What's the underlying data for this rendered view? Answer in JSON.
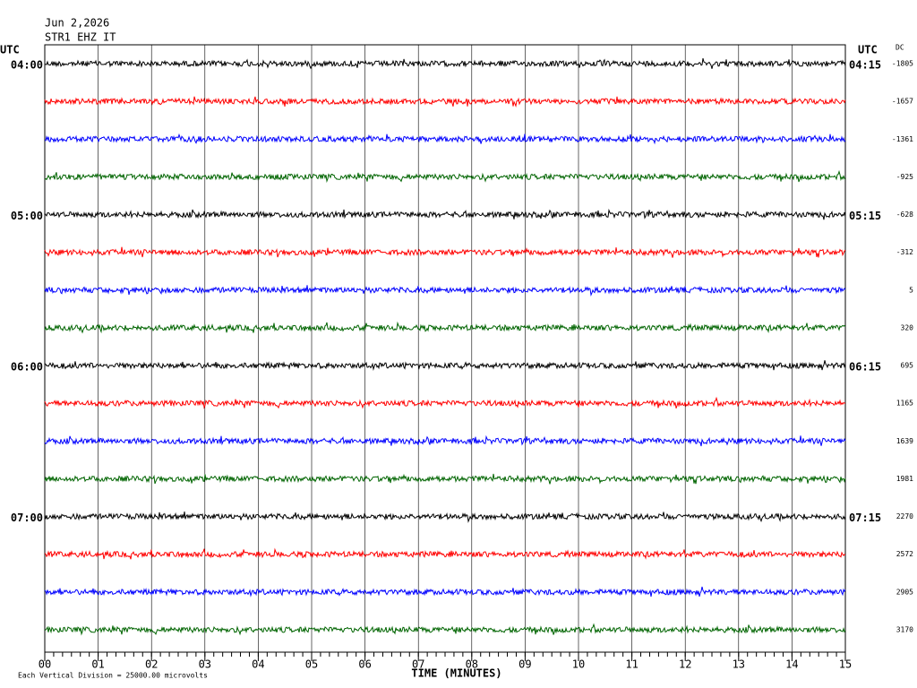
{
  "header": {
    "date": "Jun 2,2026",
    "station": "STR1 EHZ IT"
  },
  "chart_data": {
    "type": "helicorder",
    "left_axis_label": "UTC",
    "right_axis_label": "UTC",
    "dc_label": "DC",
    "xlabel": "TIME (MINUTES)",
    "footnote": "Each Vertical Division = 25000.00 microvolts",
    "xlim": [
      0,
      15
    ],
    "xticks": [
      {
        "value": 0,
        "label": "00"
      },
      {
        "value": 1,
        "label": "01"
      },
      {
        "value": 2,
        "label": "02"
      },
      {
        "value": 3,
        "label": "03"
      },
      {
        "value": 4,
        "label": "04"
      },
      {
        "value": 5,
        "label": "05"
      },
      {
        "value": 6,
        "label": "06"
      },
      {
        "value": 7,
        "label": "07"
      },
      {
        "value": 8,
        "label": "08"
      },
      {
        "value": 9,
        "label": "09"
      },
      10,
      11,
      12,
      13,
      14,
      15
    ],
    "grid": true,
    "rows": [
      {
        "left": "04:00",
        "right": "04:15",
        "dc": -1805,
        "color": "#000000"
      },
      {
        "left": null,
        "right": null,
        "dc": -1657,
        "color": "#ff0000"
      },
      {
        "left": null,
        "right": null,
        "dc": -1361,
        "color": "#0000ff"
      },
      {
        "left": null,
        "right": null,
        "dc": -925,
        "color": "#006400"
      },
      {
        "left": "05:00",
        "right": "05:15",
        "dc": -628,
        "color": "#000000"
      },
      {
        "left": null,
        "right": null,
        "dc": -312,
        "color": "#ff0000"
      },
      {
        "left": null,
        "right": null,
        "dc": 5,
        "color": "#0000ff"
      },
      {
        "left": null,
        "right": null,
        "dc": 320,
        "color": "#006400"
      },
      {
        "left": "06:00",
        "right": "06:15",
        "dc": 695,
        "color": "#000000"
      },
      {
        "left": null,
        "right": null,
        "dc": 1165,
        "color": "#ff0000"
      },
      {
        "left": null,
        "right": null,
        "dc": 1639,
        "color": "#0000ff"
      },
      {
        "left": null,
        "right": null,
        "dc": 1981,
        "color": "#006400"
      },
      {
        "left": "07:00",
        "right": "07:15",
        "dc": 2270,
        "color": "#000000"
      },
      {
        "left": null,
        "right": null,
        "dc": 2572,
        "color": "#ff0000"
      },
      {
        "left": null,
        "right": null,
        "dc": 2905,
        "color": "#0000ff"
      },
      {
        "left": null,
        "right": null,
        "dc": 3170,
        "color": "#006400"
      }
    ]
  }
}
